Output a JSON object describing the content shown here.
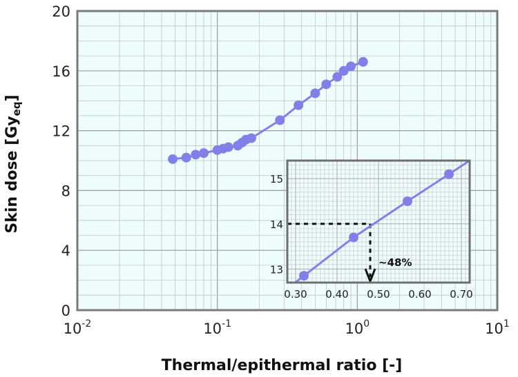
{
  "chart_data": [
    {
      "type": "scatter",
      "x_scale": "log",
      "xlim": [
        0.01,
        10
      ],
      "ylim": [
        0,
        20
      ],
      "xlabel": "Thermal/epithermal ratio [-]",
      "ylabel_main": "Skin dose [Gy",
      "ylabel_sub": "eq",
      "ylabel_end": "]",
      "x_ticks": [
        {
          "value": 0.01,
          "base": "10",
          "exp": "-2"
        },
        {
          "value": 0.1,
          "base": "10",
          "exp": "-1"
        },
        {
          "value": 1,
          "base": "10",
          "exp": "0"
        },
        {
          "value": 10,
          "base": "10",
          "exp": "1"
        }
      ],
      "y_ticks": [
        "0",
        "4",
        "8",
        "12",
        "16",
        "20"
      ],
      "grid": true,
      "marker_color": "#8080e8",
      "line_color": "#8080e8",
      "background_color": "#eefcfc",
      "series": [
        {
          "x": [
            0.048,
            0.06,
            0.07,
            0.08,
            0.1,
            0.11,
            0.12,
            0.14,
            0.15,
            0.16,
            0.175,
            0.28,
            0.38,
            0.5,
            0.6,
            0.72,
            0.8,
            0.9,
            1.1
          ],
          "y": [
            10.1,
            10.2,
            10.4,
            10.5,
            10.7,
            10.8,
            10.9,
            11.0,
            11.2,
            11.4,
            11.5,
            12.7,
            13.7,
            14.5,
            15.1,
            15.6,
            16.0,
            16.3,
            16.6
          ]
        }
      ]
    },
    {
      "type": "line",
      "subtitle": "inset",
      "xlim": [
        0.28,
        0.72
      ],
      "ylim": [
        12.7,
        15.4
      ],
      "x_ticks": [
        "0.30",
        "0.40",
        "0.50",
        "0.60",
        "0.70"
      ],
      "x_tick_values": [
        0.3,
        0.4,
        0.5,
        0.6,
        0.7
      ],
      "y_ticks": [
        "13",
        "14",
        "15"
      ],
      "y_tick_values": [
        13,
        14,
        15
      ],
      "series": [
        {
          "x": [
            0.32,
            0.44,
            0.57,
            0.67
          ],
          "y": [
            12.85,
            13.7,
            14.5,
            15.1
          ]
        }
      ],
      "annotation": {
        "label": "~48%",
        "x": 0.48,
        "y": 14.0
      }
    }
  ]
}
